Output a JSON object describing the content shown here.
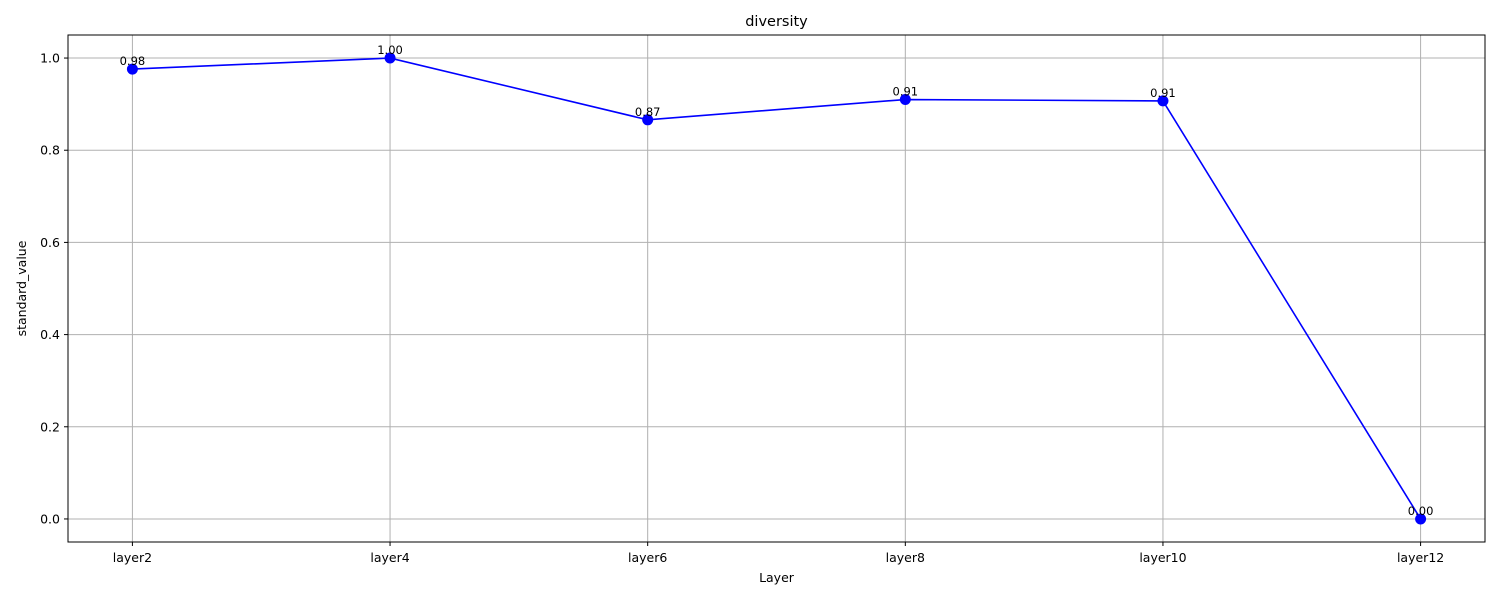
{
  "chart_data": {
    "type": "line",
    "title": "diversity",
    "xlabel": "Layer",
    "ylabel": "standard_value",
    "categories": [
      "layer2",
      "layer4",
      "layer6",
      "layer8",
      "layer10",
      "layer12"
    ],
    "series": [
      {
        "values": [
          0.976,
          1.0,
          0.866,
          0.91,
          0.907,
          0.0
        ],
        "labels": [
          "0.98",
          "1.00",
          "0.87",
          "0.91",
          "0.91",
          "0.00"
        ],
        "color": "#0000ff",
        "marker": "circle"
      }
    ],
    "ylim": [
      -0.05,
      1.05
    ],
    "yticks": [
      0.0,
      0.2,
      0.4,
      0.6,
      0.8,
      1.0
    ],
    "ytick_labels": [
      "0.0",
      "0.2",
      "0.4",
      "0.6",
      "0.8",
      "1.0"
    ],
    "grid": true,
    "legend": false
  }
}
